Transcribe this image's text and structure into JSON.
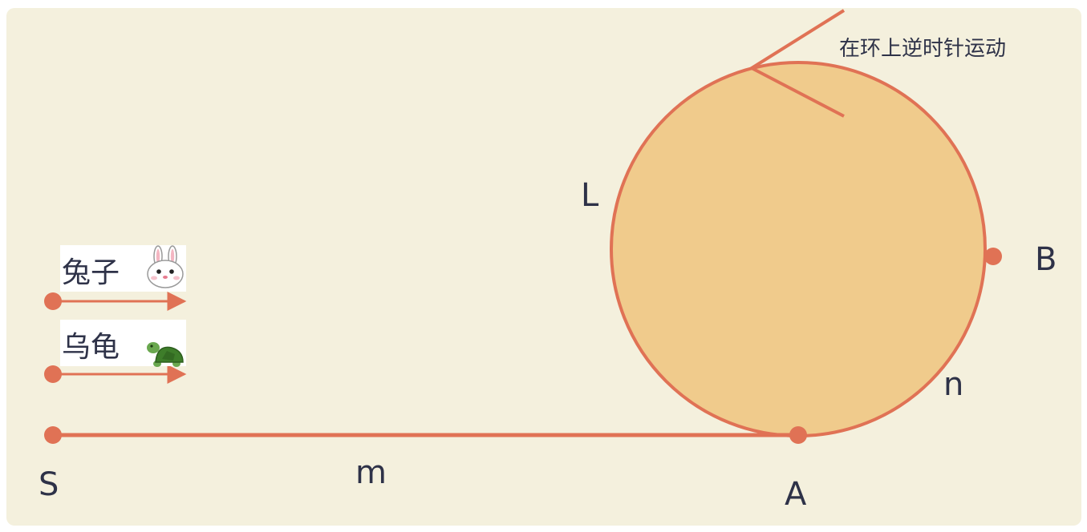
{
  "colors": {
    "panel_background": "#f4f0dd",
    "circle_fill": "#f0cb8c",
    "stroke": "#e07255",
    "label_text": "#2e3248"
  },
  "labels": {
    "S": "S",
    "m": "m",
    "A": "A",
    "B": "B",
    "L": "L",
    "n": "n",
    "annotation": "在环上逆时针运动"
  },
  "runners": [
    {
      "label": "兔子",
      "icon": "rabbit-icon"
    },
    {
      "label": "乌龟",
      "icon": "turtle-icon"
    }
  ]
}
